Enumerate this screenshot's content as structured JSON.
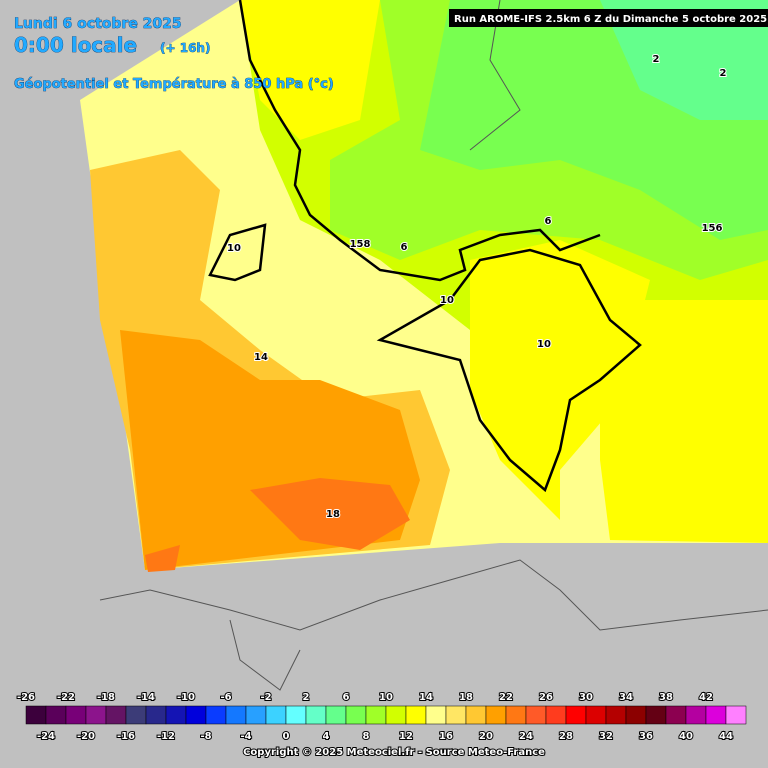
{
  "header": {
    "date": "Lundi 6 octobre 2025",
    "time": "0:00 locale",
    "offset": "(+ 16h)",
    "field": "Géopotentiel et Température à 850 hPa (°c)",
    "run": "Run AROME-IFS 2.5km 6 Z du Dimanche 5 octobre 2025"
  },
  "map": {
    "contour_labels": [
      "10",
      "14",
      "18",
      "158",
      "6",
      "10",
      "10",
      "6",
      "156",
      "2",
      "2"
    ]
  },
  "legend": {
    "values": [
      -26,
      -24,
      -22,
      -20,
      -18,
      -16,
      -14,
      -12,
      -10,
      -8,
      -6,
      -4,
      -2,
      0,
      2,
      4,
      6,
      8,
      10,
      12,
      14,
      16,
      18,
      20,
      22,
      24,
      26,
      28,
      30,
      32,
      34,
      36,
      38,
      40,
      42,
      44
    ],
    "colors": [
      "#3c003c",
      "#5a005a",
      "#780078",
      "#8c148c",
      "#641464",
      "#3c3c78",
      "#28288c",
      "#1414b4",
      "#0000dc",
      "#0a3cff",
      "#1478ff",
      "#28a0ff",
      "#3cd2ff",
      "#64ffff",
      "#64ffc8",
      "#64ff8c",
      "#78ff50",
      "#a0ff28",
      "#d2ff00",
      "#ffff00",
      "#ffff8c",
      "#ffe664",
      "#ffc832",
      "#ffa000",
      "#ff7814",
      "#ff5a28",
      "#ff3c1e",
      "#ff0000",
      "#dc0000",
      "#b40000",
      "#8c0000",
      "#640014",
      "#8c0050",
      "#b400a0",
      "#dc00dc",
      "#ff80ff"
    ]
  },
  "copyright": "Copyright © 2025 Meteociel.fr - Source Meteo-France"
}
